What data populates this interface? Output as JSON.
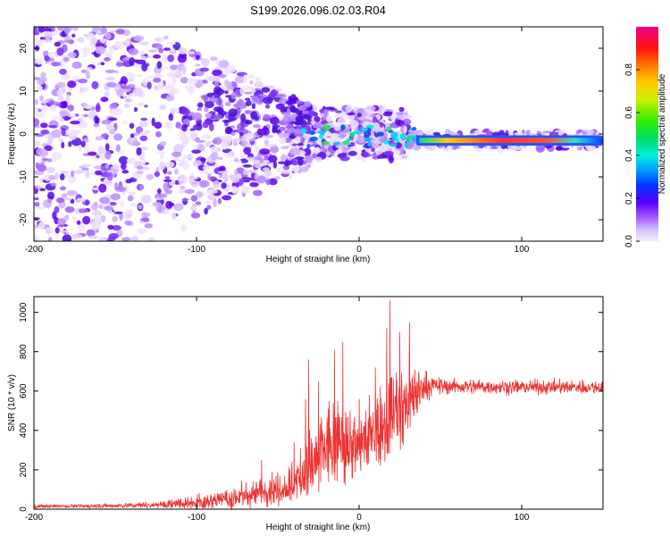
{
  "title": "S199.2026.096.02.03.R04",
  "chart_data": [
    {
      "type": "heatmap",
      "xlabel": "Height of straight line (km)",
      "ylabel": "Frequency (Hz)",
      "xlim": [
        -200,
        150
      ],
      "ylim": [
        -25,
        25
      ],
      "xticks": [
        -200,
        -100,
        0,
        100
      ],
      "yticks": [
        -20,
        -10,
        0,
        10,
        20
      ],
      "colorbar": {
        "label": "Normalized spectral amplitude",
        "range": [
          0,
          1
        ],
        "ticks": [
          0.0,
          0.2,
          0.4,
          0.6,
          0.8
        ]
      },
      "ridge": {
        "x_start": 35,
        "x_end": 150,
        "frequency": -1.5
      }
    },
    {
      "type": "line",
      "xlabel": "Height of straight line (km)",
      "ylabel": "SNR (10 * v/v)",
      "xlim": [
        -200,
        150
      ],
      "ylim": [
        0,
        1080
      ],
      "xticks": [
        -200,
        -100,
        0,
        100
      ],
      "yticks": [
        0,
        200,
        400,
        600,
        800,
        1000
      ],
      "series": [
        {
          "color": "#ee3333",
          "x": [
            -200,
            -150,
            -120,
            -100,
            -80,
            -60,
            -40,
            -30,
            -20,
            -10,
            0,
            10,
            18,
            25,
            30,
            35,
            40,
            50,
            100,
            150
          ],
          "mean": [
            15,
            18,
            25,
            40,
            60,
            90,
            140,
            230,
            320,
            360,
            330,
            420,
            480,
            520,
            560,
            600,
            630,
            625,
            620,
            620
          ],
          "spread": [
            8,
            10,
            20,
            40,
            50,
            70,
            110,
            180,
            230,
            230,
            160,
            190,
            230,
            220,
            200,
            150,
            70,
            40,
            35,
            35
          ],
          "peaks": [
            {
              "x": -60,
              "y": 250
            },
            {
              "x": -40,
              "y": 340
            },
            {
              "x": -33,
              "y": 560
            },
            {
              "x": -31,
              "y": 760
            },
            {
              "x": -25,
              "y": 650
            },
            {
              "x": -15,
              "y": 810
            },
            {
              "x": -10,
              "y": 850
            },
            {
              "x": 0,
              "y": 560
            },
            {
              "x": 10,
              "y": 720
            },
            {
              "x": 17,
              "y": 920
            },
            {
              "x": 19,
              "y": 1060
            },
            {
              "x": 25,
              "y": 900
            },
            {
              "x": 31,
              "y": 950
            }
          ]
        }
      ]
    }
  ]
}
